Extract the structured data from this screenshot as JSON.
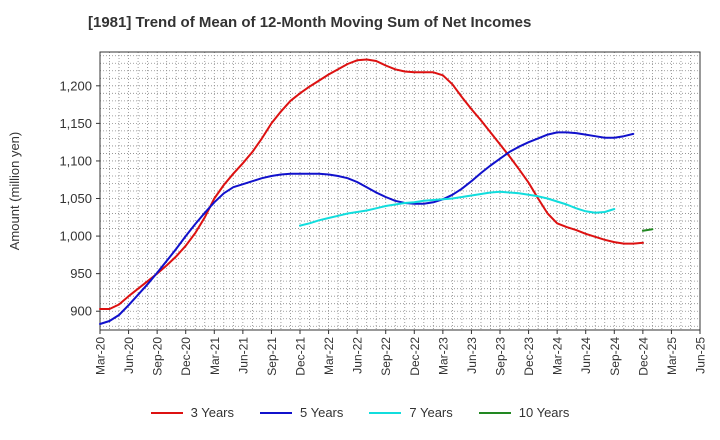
{
  "chart_data": {
    "type": "line",
    "title": "[1981]  Trend of Mean of 12-Month Moving Sum of Net Incomes",
    "ylabel": "Amount (million yen)",
    "xlabel": "",
    "ylim": [
      875,
      1245
    ],
    "yticks": [
      900,
      950,
      1000,
      1050,
      1100,
      1150,
      1200
    ],
    "ytick_labels": [
      "900",
      "950",
      "1,000",
      "1,050",
      "1,100",
      "1,150",
      "1,200"
    ],
    "xlim": [
      "2020-03",
      "2025-06"
    ],
    "xtick_labels": [
      "Mar-20",
      "Jun-20",
      "Sep-20",
      "Dec-20",
      "Mar-21",
      "Jun-21",
      "Sep-21",
      "Dec-21",
      "Mar-22",
      "Jun-22",
      "Sep-22",
      "Dec-22",
      "Mar-23",
      "Jun-23",
      "Sep-23",
      "Dec-23",
      "Mar-24",
      "Jun-24",
      "Sep-24",
      "Dec-24",
      "Mar-25",
      "Jun-25"
    ],
    "grid": true,
    "legend_position": "bottom",
    "series": [
      {
        "name": "3 Years",
        "color": "#dd1111",
        "start": "2020-03",
        "values": [
          903,
          903,
          909,
          920,
          930,
          940,
          950,
          961,
          973,
          987,
          1004,
          1025,
          1050,
          1068,
          1083,
          1097,
          1112,
          1130,
          1150,
          1166,
          1180,
          1190,
          1199,
          1207,
          1215,
          1222,
          1229,
          1234,
          1235,
          1233,
          1227,
          1222,
          1219,
          1218,
          1218,
          1218,
          1214,
          1202,
          1185,
          1169,
          1154,
          1138,
          1122,
          1106,
          1089,
          1071,
          1050,
          1030,
          1017,
          1012,
          1008,
          1003,
          999,
          995,
          992,
          990,
          990,
          991
        ]
      },
      {
        "name": "5 Years",
        "color": "#1111cc",
        "start": "2020-03",
        "values": [
          883,
          887,
          895,
          908,
          922,
          936,
          951,
          967,
          983,
          1000,
          1016,
          1031,
          1045,
          1057,
          1065,
          1069,
          1073,
          1077,
          1080,
          1082,
          1083,
          1083,
          1083,
          1083,
          1082,
          1080,
          1077,
          1072,
          1065,
          1058,
          1052,
          1047,
          1044,
          1043,
          1043,
          1045,
          1049,
          1055,
          1063,
          1073,
          1084,
          1094,
          1103,
          1112,
          1119,
          1125,
          1130,
          1135,
          1138,
          1138,
          1137,
          1135,
          1133,
          1131,
          1131,
          1133,
          1136
        ]
      },
      {
        "name": "7 Years",
        "color": "#11dddd",
        "start": "2021-12",
        "values": [
          1014,
          1017,
          1021,
          1024,
          1027,
          1030,
          1032,
          1034,
          1037,
          1040,
          1042,
          1044,
          1045,
          1047,
          1048,
          1049,
          1050,
          1052,
          1054,
          1056,
          1058,
          1059,
          1058,
          1057,
          1055,
          1053,
          1050,
          1046,
          1042,
          1037,
          1033,
          1031,
          1032,
          1036
        ]
      },
      {
        "name": "10 Years",
        "color": "#228822",
        "start": "2024-12",
        "values": [
          1007,
          1009
        ]
      }
    ]
  }
}
